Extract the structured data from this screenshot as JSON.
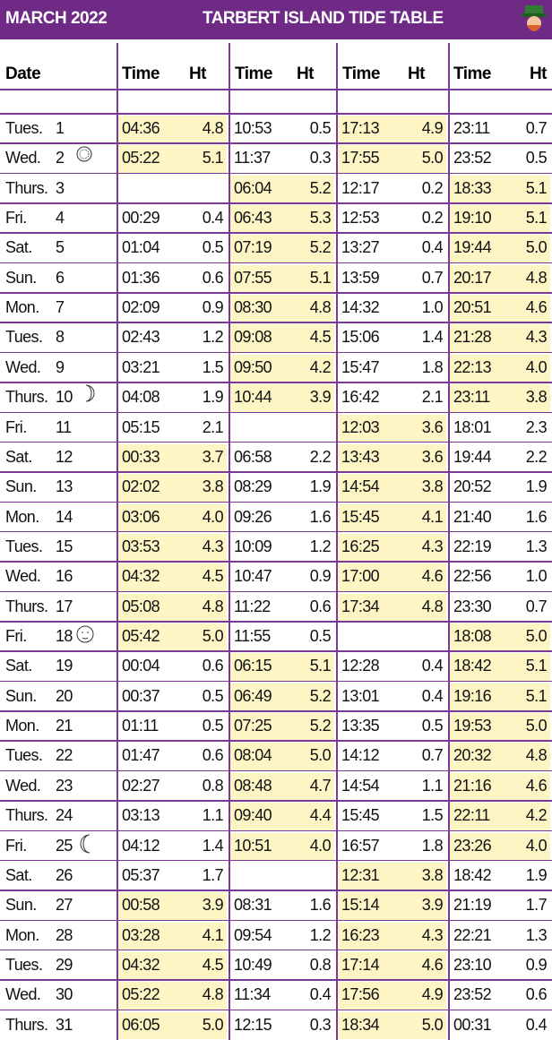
{
  "header": {
    "month": "MARCH 2022",
    "title": "TARBERT ISLAND TIDE TABLE"
  },
  "columns": [
    "Date",
    "Time",
    "Ht",
    "Time",
    "Ht",
    "Time",
    "Ht",
    "Time",
    "Ht"
  ],
  "rows": [
    [
      "Tues.",
      "1",
      "04:36",
      "4.8",
      "10:53",
      "0.5",
      "17:13",
      "4.9",
      "23:11",
      "0.7"
    ],
    [
      "Wed.",
      "2",
      "05:22",
      "5.1",
      "11:37",
      "0.3",
      "17:55",
      "5.0",
      "23:52",
      "0.5"
    ],
    [
      "Thurs.",
      "3",
      null,
      null,
      "06:04",
      "5.2",
      "12:17",
      "0.2",
      "18:33",
      "5.1"
    ],
    [
      "Fri.",
      "4",
      "00:29",
      "0.4",
      "06:43",
      "5.3",
      "12:53",
      "0.2",
      "19:10",
      "5.1"
    ],
    [
      "Sat.",
      "5",
      "01:04",
      "0.5",
      "07:19",
      "5.2",
      "13:27",
      "0.4",
      "19:44",
      "5.0"
    ],
    [
      "Sun.",
      "6",
      "01:36",
      "0.6",
      "07:55",
      "5.1",
      "13:59",
      "0.7",
      "20:17",
      "4.8"
    ],
    [
      "Mon.",
      "7",
      "02:09",
      "0.9",
      "08:30",
      "4.8",
      "14:32",
      "1.0",
      "20:51",
      "4.6"
    ],
    [
      "Tues.",
      "8",
      "02:43",
      "1.2",
      "09:08",
      "4.5",
      "15:06",
      "1.4",
      "21:28",
      "4.3"
    ],
    [
      "Wed.",
      "9",
      "03:21",
      "1.5",
      "09:50",
      "4.2",
      "15:47",
      "1.8",
      "22:13",
      "4.0"
    ],
    [
      "Thurs.",
      "10",
      "04:08",
      "1.9",
      "10:44",
      "3.9",
      "16:42",
      "2.1",
      "23:11",
      "3.8"
    ],
    [
      "Fri.",
      "11",
      "05:15",
      "2.1",
      null,
      null,
      "12:03",
      "3.6",
      "18:01",
      "2.3"
    ],
    [
      "Sat.",
      "12",
      "00:33",
      "3.7",
      "06:58",
      "2.2",
      "13:43",
      "3.6",
      "19:44",
      "2.2"
    ],
    [
      "Sun.",
      "13",
      "02:02",
      "3.8",
      "08:29",
      "1.9",
      "14:54",
      "3.8",
      "20:52",
      "1.9"
    ],
    [
      "Mon.",
      "14",
      "03:06",
      "4.0",
      "09:26",
      "1.6",
      "15:45",
      "4.1",
      "21:40",
      "1.6"
    ],
    [
      "Tues.",
      "15",
      "03:53",
      "4.3",
      "10:09",
      "1.2",
      "16:25",
      "4.3",
      "22:19",
      "1.3"
    ],
    [
      "Wed.",
      "16",
      "04:32",
      "4.5",
      "10:47",
      "0.9",
      "17:00",
      "4.6",
      "22:56",
      "1.0"
    ],
    [
      "Thurs.",
      "17",
      "05:08",
      "4.8",
      "11:22",
      "0.6",
      "17:34",
      "4.8",
      "23:30",
      "0.7"
    ],
    [
      "Fri.",
      "18",
      "05:42",
      "5.0",
      "11:55",
      "0.5",
      null,
      null,
      "18:08",
      "5.0"
    ],
    [
      "Sat.",
      "19",
      "00:04",
      "0.6",
      "06:15",
      "5.1",
      "12:28",
      "0.4",
      "18:42",
      "5.1"
    ],
    [
      "Sun.",
      "20",
      "00:37",
      "0.5",
      "06:49",
      "5.2",
      "13:01",
      "0.4",
      "19:16",
      "5.1"
    ],
    [
      "Mon.",
      "21",
      "01:11",
      "0.5",
      "07:25",
      "5.2",
      "13:35",
      "0.5",
      "19:53",
      "5.0"
    ],
    [
      "Tues.",
      "22",
      "01:47",
      "0.6",
      "08:04",
      "5.0",
      "14:12",
      "0.7",
      "20:32",
      "4.8"
    ],
    [
      "Wed.",
      "23",
      "02:27",
      "0.8",
      "08:48",
      "4.7",
      "14:54",
      "1.1",
      "21:16",
      "4.6"
    ],
    [
      "Thurs.",
      "24",
      "03:13",
      "1.1",
      "09:40",
      "4.4",
      "15:45",
      "1.5",
      "22:11",
      "4.2"
    ],
    [
      "Fri.",
      "25",
      "04:12",
      "1.4",
      "10:51",
      "4.0",
      "16:57",
      "1.8",
      "23:26",
      "4.0"
    ],
    [
      "Sat.",
      "26",
      "05:37",
      "1.7",
      null,
      null,
      "12:31",
      "3.8",
      "18:42",
      "1.9"
    ],
    [
      "Sun.",
      "27",
      "00:58",
      "3.9",
      "08:31",
      "1.6",
      "15:14",
      "3.9",
      "21:19",
      "1.7"
    ],
    [
      "Mon.",
      "28",
      "03:28",
      "4.1",
      "09:54",
      "1.2",
      "16:23",
      "4.3",
      "22:21",
      "1.3"
    ],
    [
      "Tues.",
      "29",
      "04:32",
      "4.5",
      "10:49",
      "0.8",
      "17:14",
      "4.6",
      "23:10",
      "0.9"
    ],
    [
      "Wed.",
      "30",
      "05:22",
      "4.8",
      "11:34",
      "0.4",
      "17:56",
      "4.9",
      "23:52",
      "0.6"
    ],
    [
      "Thurs.",
      "31",
      "06:05",
      "5.0",
      "12:15",
      "0.3",
      "18:34",
      "5.0",
      "00:31",
      "0.4"
    ]
  ]
}
